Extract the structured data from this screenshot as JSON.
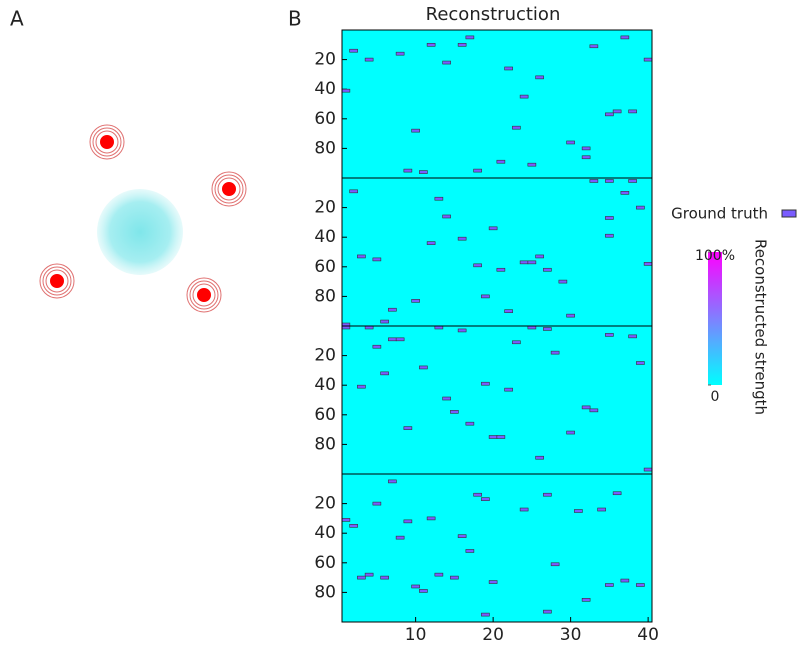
{
  "panel_labels": {
    "a": "A",
    "b": "B"
  },
  "chart_data": {
    "type": "heatmap",
    "title": "Reconstruction",
    "xlim": [
      0.5,
      40.5
    ],
    "xticks": [
      10,
      20,
      30,
      40
    ],
    "ylim": [
      0,
      100
    ],
    "y_inverted": true,
    "yticks": [
      20,
      40,
      60,
      80
    ],
    "background_color": "#00ffff",
    "marker_color": "#7a5cff",
    "legend": "Ground truth",
    "panels": [
      {
        "x": [
          2,
          4,
          8,
          12,
          14,
          16,
          17,
          22,
          26,
          24,
          1,
          10,
          23,
          30,
          32,
          35,
          36,
          38,
          40,
          33,
          37,
          21,
          18,
          25,
          11,
          9,
          32
        ],
        "y": [
          14,
          20,
          16,
          10,
          22,
          10,
          5,
          26,
          32,
          45,
          41,
          68,
          66,
          76,
          86,
          57,
          55,
          55,
          20,
          11,
          5,
          89,
          95,
          91,
          96,
          95,
          80
        ]
      },
      {
        "x": [
          2,
          13,
          14,
          16,
          12,
          3,
          5,
          20,
          21,
          18,
          24,
          25,
          26,
          27,
          29,
          7,
          10,
          19,
          22,
          30,
          33,
          35,
          37,
          38,
          39,
          35,
          35,
          40,
          6,
          1
        ],
        "y": [
          9,
          14,
          26,
          41,
          44,
          53,
          55,
          34,
          62,
          59,
          57,
          57,
          53,
          62,
          70,
          89,
          83,
          80,
          90,
          93,
          2,
          2,
          10,
          2,
          20,
          27,
          39,
          58,
          97,
          99
        ]
      },
      {
        "x": [
          1,
          4,
          7,
          8,
          5,
          6,
          3,
          11,
          13,
          16,
          14,
          15,
          17,
          20,
          21,
          19,
          22,
          23,
          27,
          28,
          30,
          25,
          32,
          33,
          26,
          9,
          35,
          38,
          39,
          40
        ],
        "y": [
          1,
          1,
          9,
          9,
          14,
          32,
          41,
          28,
          1,
          3,
          49,
          58,
          66,
          75,
          75,
          39,
          43,
          11,
          2,
          18,
          72,
          1,
          55,
          57,
          89,
          69,
          6,
          7,
          25,
          97
        ]
      },
      {
        "x": [
          1,
          2,
          5,
          7,
          9,
          8,
          12,
          16,
          17,
          18,
          19,
          20,
          24,
          27,
          28,
          31,
          34,
          36,
          3,
          4,
          6,
          10,
          11,
          13,
          15,
          19,
          27,
          32,
          35,
          37,
          39
        ],
        "y": [
          31,
          35,
          20,
          5,
          32,
          43,
          30,
          42,
          52,
          14,
          17,
          73,
          24,
          14,
          61,
          25,
          24,
          13,
          70,
          68,
          70,
          76,
          79,
          68,
          70,
          95,
          93,
          85,
          75,
          72,
          75
        ]
      }
    ],
    "colorbar": {
      "label": "Reconstructed strength",
      "lim": [
        0,
        100
      ],
      "ticks": [
        0,
        {
          "value": 100,
          "label": "100%"
        }
      ],
      "colors": [
        "#00ffff",
        "#ff00ff"
      ]
    }
  }
}
